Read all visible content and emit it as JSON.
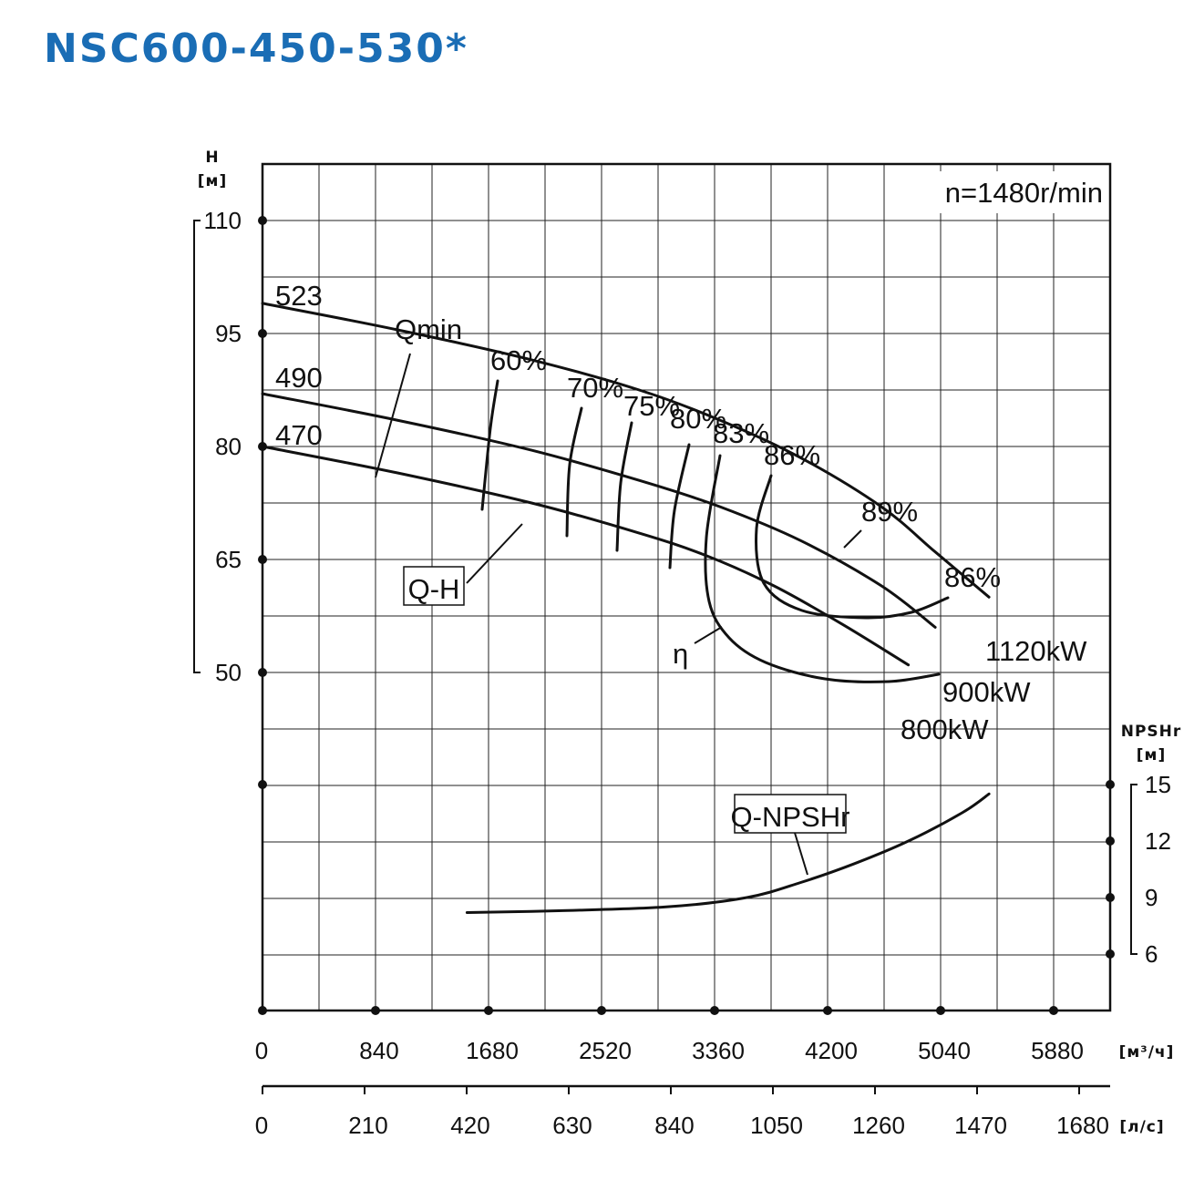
{
  "title": "NSC600-450-530*",
  "chart_data": {
    "type": "line",
    "speed_label": "n=1480r/min",
    "x_axis": {
      "unit_m3h": "[м³/ч]",
      "ticks_m3h": [
        "0",
        "840",
        "1680",
        "2520",
        "3360",
        "4200",
        "5040",
        "5880"
      ],
      "unit_ls": "[л/с]",
      "ticks_ls": [
        "0",
        "210",
        "420",
        "630",
        "840",
        "1050",
        "1260",
        "1470",
        "1680"
      ],
      "xlim_m3h": [
        0,
        6300
      ]
    },
    "y_axis_head": {
      "label": "H",
      "unit": "[м]",
      "ticks": [
        "110",
        "95",
        "80",
        "65",
        "50"
      ],
      "ylim": [
        35,
        115
      ]
    },
    "y_axis_npsh": {
      "label": "NPSHr",
      "unit": "[м]",
      "ticks": [
        "15",
        "12",
        "9",
        "6"
      ],
      "ylim": [
        6,
        15
      ]
    },
    "qh_label": "Q-H",
    "npsh_label": "Q-NPSHr",
    "eta_label": "η",
    "qmin_label": "Qmin",
    "head_curves": [
      {
        "name": "523",
        "x": [
          0,
          1000,
          2000,
          2800,
          3400,
          4000,
          4600,
          5000,
          5400
        ],
        "y": [
          99,
          95.5,
          91.5,
          87.5,
          83.5,
          78.5,
          72,
          66,
          60
        ]
      },
      {
        "name": "490",
        "x": [
          0,
          1000,
          2000,
          2800,
          3400,
          4000,
          4600,
          5000
        ],
        "y": [
          87,
          83.5,
          79.5,
          75.5,
          72,
          67.5,
          61.5,
          56
        ]
      },
      {
        "name": "470",
        "x": [
          0,
          1000,
          2000,
          2800,
          3300,
          3800,
          4300,
          4800
        ],
        "y": [
          80,
          76.5,
          72.5,
          68.5,
          65.5,
          61.5,
          56.5,
          51
        ]
      }
    ],
    "power_labels": [
      "1120kW",
      "900kW",
      "800kW"
    ],
    "efficiency_labels": [
      "60%",
      "70%",
      "75%",
      "80%",
      "83%",
      "86%",
      "89%",
      "86%"
    ],
    "npsh_curve": {
      "x": [
        1520,
        2200,
        3000,
        3600,
        4000,
        4400,
        4800,
        5200,
        5400
      ],
      "y": [
        8.2,
        8.3,
        8.5,
        9.0,
        9.8,
        10.8,
        12.0,
        13.5,
        14.5
      ]
    }
  }
}
